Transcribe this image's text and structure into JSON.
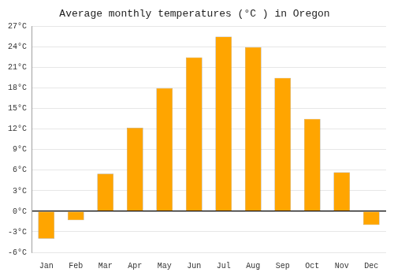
{
  "chart_data": {
    "type": "bar",
    "title": "Average monthly temperatures (°C ) in Oregon",
    "categories": [
      "Jan",
      "Feb",
      "Mar",
      "Apr",
      "May",
      "Jun",
      "Jul",
      "Aug",
      "Sep",
      "Oct",
      "Nov",
      "Dec"
    ],
    "values": [
      -4.0,
      -1.3,
      5.5,
      12.2,
      18.0,
      22.5,
      25.5,
      24.0,
      19.5,
      13.5,
      5.7,
      -2.0
    ],
    "color": "#FFA500",
    "ylim": [
      -6,
      27
    ],
    "yticks": [
      {
        "value": -6,
        "label": "-6°C"
      },
      {
        "value": -3,
        "label": "-3°C"
      },
      {
        "value": 0,
        "label": "0°C"
      },
      {
        "value": 3,
        "label": "3°C"
      },
      {
        "value": 6,
        "label": "6°C"
      },
      {
        "value": 9,
        "label": "9°C"
      },
      {
        "value": 12,
        "label": "12°C"
      },
      {
        "value": 15,
        "label": "15°C"
      },
      {
        "value": 18,
        "label": "18°C"
      },
      {
        "value": 21,
        "label": "21°C"
      },
      {
        "value": 24,
        "label": "24°C"
      },
      {
        "value": 27,
        "label": "27°C"
      }
    ],
    "grid": true
  }
}
